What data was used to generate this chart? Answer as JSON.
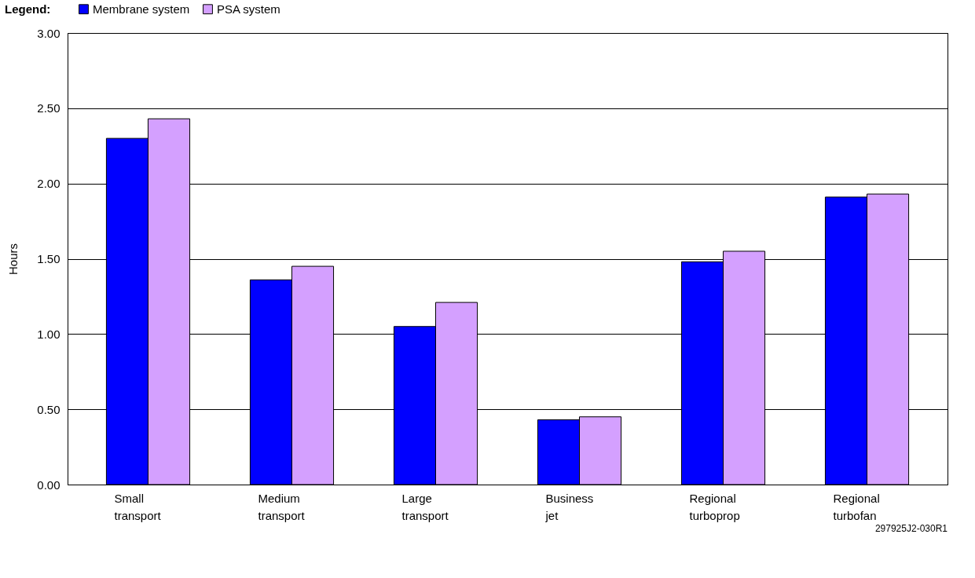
{
  "chart_data": {
    "type": "bar",
    "ylabel": "Hours",
    "legend_title": "Legend:",
    "legend": "top left",
    "grid": "y",
    "categories": [
      "Small transport",
      "Medium transport",
      "Large transport",
      "Business jet",
      "Regional turboprop",
      "Regional turbofan"
    ],
    "series": [
      {
        "name": "Membrane system",
        "color": "#0000ff",
        "values": [
          2.3,
          1.36,
          1.05,
          0.43,
          1.48,
          1.91
        ]
      },
      {
        "name": "PSA system",
        "color": "#d4a0ff",
        "values": [
          2.43,
          1.45,
          1.21,
          0.45,
          1.55,
          1.93
        ]
      }
    ],
    "ylim": [
      0,
      3
    ],
    "yticks": [
      {
        "value": 0,
        "label": "0.00"
      },
      {
        "value": 0.5,
        "label": "0.50"
      },
      {
        "value": 1,
        "label": "1.00"
      },
      {
        "value": 1.5,
        "label": "1.50"
      },
      {
        "value": 2,
        "label": "2.00"
      },
      {
        "value": 2.5,
        "label": "2.50"
      },
      {
        "value": 3,
        "label": "3.00"
      }
    ],
    "annotations": [
      "297925J2-030R1"
    ]
  }
}
